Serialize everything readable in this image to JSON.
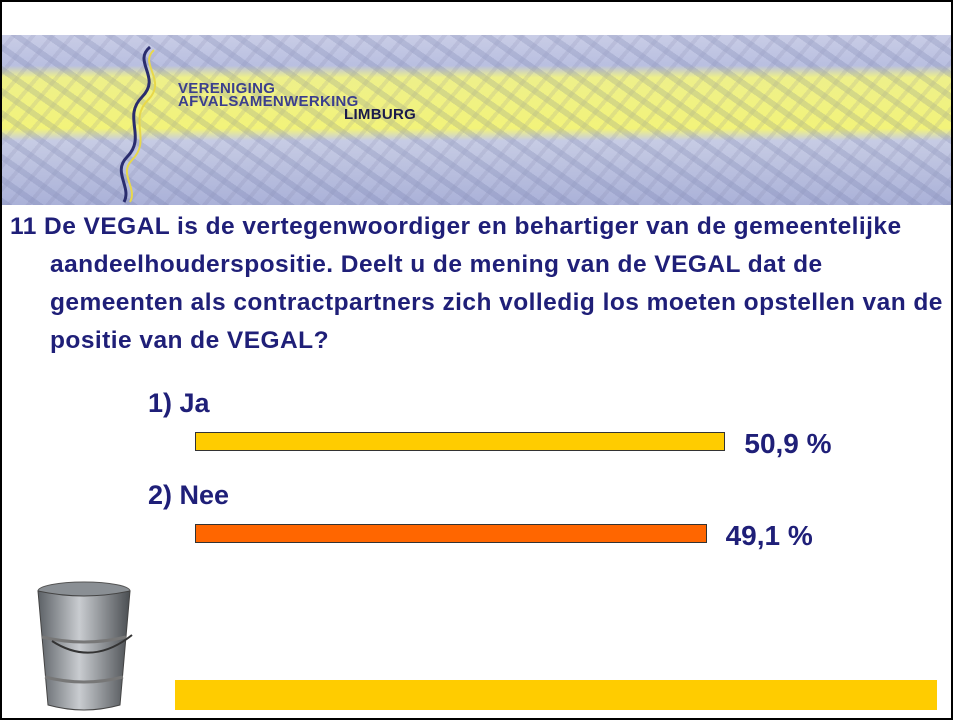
{
  "chart_data": {
    "type": "bar",
    "orientation": "horizontal",
    "logo_text": [
      "VERENIGING",
      "AFVALSAMENWERKING",
      "LIMBURG"
    ],
    "title": "11 De VEGAL is de vertegenwoordiger en behartiger van de gemeentelijke aandeelhouderspositie. Deelt u de mening van de VEGAL dat de gemeenten als contractpartners zich volledig los moeten opstellen van de positie van de VEGAL?",
    "categories": [
      "1) Ja",
      "2) Nee"
    ],
    "values": [
      50.9,
      49.1
    ],
    "value_labels": [
      "50,9 %",
      "49,1 %"
    ],
    "colors": [
      "#ffcc00",
      "#ff6600"
    ]
  }
}
